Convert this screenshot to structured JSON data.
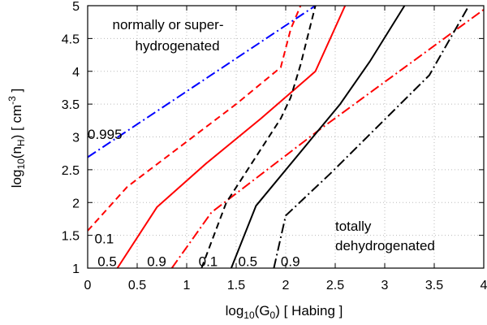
{
  "chart_data": {
    "type": "line",
    "xlabel": {
      "main": "log",
      "sub": "10",
      "mid": "(G",
      "sub2": "0",
      "rest": ")  [ Habing ]"
    },
    "ylabel": {
      "main": "log",
      "sub": "10",
      "mid": "(n",
      "sub2": "H",
      "rest": ")  [ cm",
      "sup": "-3",
      "end": " ]"
    },
    "xlim": [
      0,
      4
    ],
    "ylim": [
      1,
      5
    ],
    "grid": true,
    "xticks": [
      {
        "v": 0,
        "label": "0"
      },
      {
        "v": 0.5,
        "label": "0.5"
      },
      {
        "v": 1,
        "label": "1"
      },
      {
        "v": 1.5,
        "label": "1.5"
      },
      {
        "v": 2,
        "label": "2"
      },
      {
        "v": 2.5,
        "label": "2.5"
      },
      {
        "v": 3,
        "label": "3"
      },
      {
        "v": 3.5,
        "label": "3.5"
      },
      {
        "v": 4,
        "label": "4"
      }
    ],
    "yticks": [
      {
        "v": 1,
        "label": "1"
      },
      {
        "v": 1.5,
        "label": "1.5"
      },
      {
        "v": 2,
        "label": "2"
      },
      {
        "v": 2.5,
        "label": "2.5"
      },
      {
        "v": 3,
        "label": "3"
      },
      {
        "v": 3.5,
        "label": "3.5"
      },
      {
        "v": 4,
        "label": "4"
      },
      {
        "v": 4.5,
        "label": "4.5"
      },
      {
        "v": 5,
        "label": "5"
      }
    ],
    "series": [
      {
        "name": "0.995-blue-dashdot",
        "color": "#0000ff",
        "dash": "dashdot",
        "points": [
          [
            0,
            2.69
          ],
          [
            2.3,
            5.0
          ]
        ]
      },
      {
        "name": "0.1-red-dashed",
        "color": "#ff0000",
        "dash": "dashed",
        "points": [
          [
            0,
            1.57
          ],
          [
            0.4,
            2.24
          ],
          [
            1.5,
            3.5
          ],
          [
            1.95,
            4.06
          ],
          [
            2.05,
            4.64
          ],
          [
            2.15,
            5.0
          ]
        ]
      },
      {
        "name": "0.5-red-solid",
        "color": "#ff0000",
        "dash": "solid",
        "points": [
          [
            0.3,
            1.0
          ],
          [
            0.7,
            1.93
          ],
          [
            1.2,
            2.6
          ],
          [
            1.75,
            3.28
          ],
          [
            2.3,
            4.0
          ],
          [
            2.6,
            5.0
          ]
        ]
      },
      {
        "name": "0.9-red-dashdot",
        "color": "#ff0000",
        "dash": "dashdot",
        "points": [
          [
            0.85,
            1.0
          ],
          [
            1.25,
            1.85
          ],
          [
            2.35,
            3.12
          ],
          [
            3.6,
            4.5
          ],
          [
            4.0,
            4.94
          ]
        ]
      },
      {
        "name": "0.1-black-dashed",
        "color": "#000000",
        "dash": "dashed",
        "points": [
          [
            1.15,
            1.0
          ],
          [
            1.4,
            2.0
          ],
          [
            1.95,
            3.28
          ],
          [
            2.05,
            3.6
          ],
          [
            2.15,
            4.1
          ],
          [
            2.3,
            5.0
          ]
        ]
      },
      {
        "name": "0.5-black-solid",
        "color": "#000000",
        "dash": "solid",
        "points": [
          [
            1.45,
            1.0
          ],
          [
            1.7,
            1.95
          ],
          [
            2.55,
            3.5
          ],
          [
            2.85,
            4.15
          ],
          [
            3.2,
            5.0
          ]
        ]
      },
      {
        "name": "0.9-black-dashdot",
        "color": "#000000",
        "dash": "dashdot",
        "points": [
          [
            1.88,
            1.0
          ],
          [
            2.0,
            1.8
          ],
          [
            2.45,
            2.44
          ],
          [
            3.45,
            3.94
          ],
          [
            3.85,
            5.0
          ]
        ]
      }
    ],
    "annotations": [
      {
        "name": "annot-normally",
        "text": "normally or super-",
        "x": 0.25,
        "y": 4.64,
        "anchor": "start"
      },
      {
        "name": "annot-hydrogenated",
        "text": "hydrogenated",
        "x": 0.48,
        "y": 4.32,
        "anchor": "start"
      },
      {
        "name": "annot-totally",
        "text": "totally",
        "x": 2.5,
        "y": 1.57,
        "anchor": "start"
      },
      {
        "name": "annot-dehydrogenated",
        "text": "dehydrogenated",
        "x": 2.5,
        "y": 1.27,
        "anchor": "start"
      },
      {
        "name": "label-0995",
        "text": "0.995",
        "x": 0.0,
        "y": 2.97,
        "anchor": "start"
      },
      {
        "name": "label-01-red",
        "text": "0.1",
        "x": 0.07,
        "y": 1.38,
        "anchor": "start"
      },
      {
        "name": "label-05-red",
        "text": "0.5",
        "x": 0.1,
        "y": 1.03,
        "anchor": "start"
      },
      {
        "name": "label-09-red",
        "text": "0.9",
        "x": 0.6,
        "y": 1.03,
        "anchor": "start"
      },
      {
        "name": "label-01-black",
        "text": "0.1",
        "x": 1.12,
        "y": 1.03,
        "anchor": "start"
      },
      {
        "name": "label-05-black",
        "text": "0.5",
        "x": 1.52,
        "y": 1.03,
        "anchor": "start"
      },
      {
        "name": "label-09-black",
        "text": "0.9",
        "x": 1.95,
        "y": 1.03,
        "anchor": "start"
      }
    ]
  }
}
